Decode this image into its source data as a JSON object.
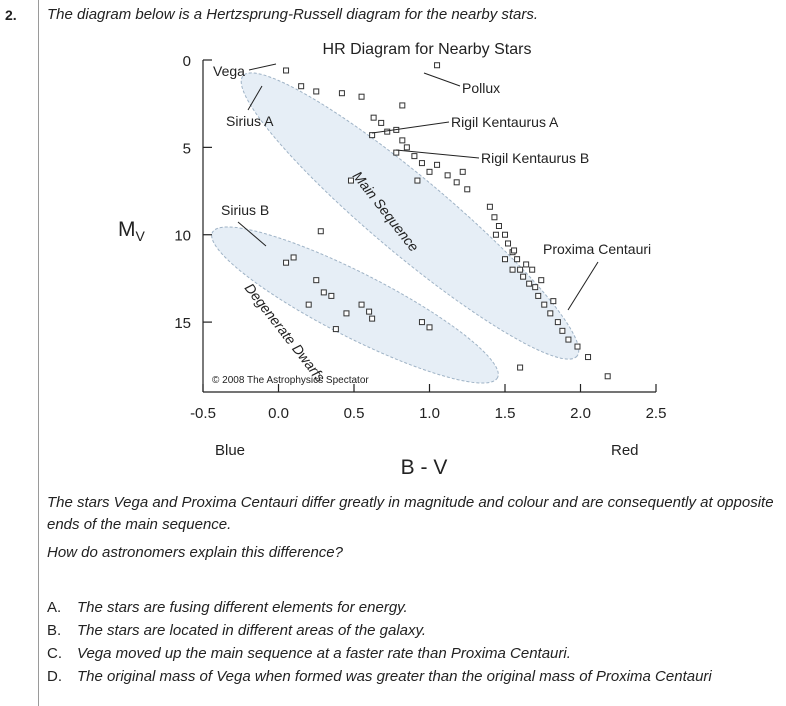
{
  "question": {
    "number": "2.",
    "intro": "The diagram below is a Hertzsprung-Russell diagram for the nearby stars.",
    "statement": "The stars Vega and Proxima Centauri differ greatly in magnitude and colour and are consequently at opposite ends of the main sequence.",
    "prompt": "How do astronomers explain this difference?",
    "options": [
      {
        "letter": "A.",
        "text": "The stars are fusing different elements for energy."
      },
      {
        "letter": "B.",
        "text": "The stars are located in different areas of the galaxy."
      },
      {
        "letter": "C.",
        "text": "Vega moved up the main sequence at a faster rate than Proxima Centauri."
      },
      {
        "letter": "D.",
        "text": "The original mass of Vega when formed was greater than the original mass of Proxima Centauri"
      }
    ]
  },
  "chart_data": {
    "type": "scatter",
    "title": "HR Diagram for Nearby Stars",
    "xlabel": "B - V",
    "ylabel": "Mv",
    "x_ticks": [
      "-0.5",
      "0.0",
      "0.5",
      "1.0",
      "1.5",
      "2.0",
      "2.5"
    ],
    "y_ticks": [
      "0",
      "5",
      "10",
      "15"
    ],
    "xlim": [
      -0.5,
      2.5
    ],
    "ylim": [
      0,
      19
    ],
    "y_inverted": true,
    "x_end_labels": {
      "left": "Blue",
      "right": "Red"
    },
    "regions": [
      {
        "label": "Main Sequence"
      },
      {
        "label": "Degenerate Dwarfs"
      }
    ],
    "annotations": [
      {
        "label": "Vega",
        "x": 0.05,
        "y": 0.8
      },
      {
        "label": "Pollux",
        "x": 1.0,
        "y": 2.0
      },
      {
        "label": "Sirius A",
        "x": 0.0,
        "y": 1.4
      },
      {
        "label": "Rigil Kentaurus A",
        "x": 0.7,
        "y": 4.4
      },
      {
        "label": "Rigil Kentaurus B",
        "x": 0.9,
        "y": 5.8
      },
      {
        "label": "Sirius B",
        "x": -0.05,
        "y": 11.4
      },
      {
        "label": "Proxima Centauri",
        "x": 1.9,
        "y": 15.4
      }
    ],
    "copyright": "© 2008 The Astrophysics Spectator",
    "points": [
      {
        "x": 0.05,
        "y": 0.6
      },
      {
        "x": 0.15,
        "y": 1.5
      },
      {
        "x": 0.25,
        "y": 1.8
      },
      {
        "x": 0.42,
        "y": 1.9
      },
      {
        "x": 0.55,
        "y": 2.1
      },
      {
        "x": 0.82,
        "y": 2.6
      },
      {
        "x": 1.05,
        "y": 0.3
      },
      {
        "x": 0.63,
        "y": 3.3
      },
      {
        "x": 0.68,
        "y": 3.6
      },
      {
        "x": 0.72,
        "y": 4.1
      },
      {
        "x": 0.78,
        "y": 4.0
      },
      {
        "x": 0.62,
        "y": 4.3
      },
      {
        "x": 0.82,
        "y": 4.6
      },
      {
        "x": 0.85,
        "y": 5.0
      },
      {
        "x": 0.78,
        "y": 5.3
      },
      {
        "x": 0.9,
        "y": 5.5
      },
      {
        "x": 0.95,
        "y": 5.9
      },
      {
        "x": 1.0,
        "y": 6.4
      },
      {
        "x": 1.05,
        "y": 6.0
      },
      {
        "x": 1.12,
        "y": 6.6
      },
      {
        "x": 1.18,
        "y": 7.0
      },
      {
        "x": 1.22,
        "y": 6.4
      },
      {
        "x": 1.25,
        "y": 7.4
      },
      {
        "x": 0.92,
        "y": 6.9
      },
      {
        "x": 0.48,
        "y": 6.9
      },
      {
        "x": 1.4,
        "y": 8.4
      },
      {
        "x": 1.43,
        "y": 9.0
      },
      {
        "x": 1.46,
        "y": 9.5
      },
      {
        "x": 1.5,
        "y": 10.0
      },
      {
        "x": 1.52,
        "y": 10.5
      },
      {
        "x": 1.55,
        "y": 11.0
      },
      {
        "x": 1.58,
        "y": 11.4
      },
      {
        "x": 1.6,
        "y": 12.0
      },
      {
        "x": 1.62,
        "y": 12.4
      },
      {
        "x": 1.66,
        "y": 12.8
      },
      {
        "x": 1.7,
        "y": 13.0
      },
      {
        "x": 1.72,
        "y": 13.5
      },
      {
        "x": 1.76,
        "y": 14.0
      },
      {
        "x": 1.8,
        "y": 14.5
      },
      {
        "x": 1.85,
        "y": 15.0
      },
      {
        "x": 1.88,
        "y": 15.5
      },
      {
        "x": 1.92,
        "y": 16.0
      },
      {
        "x": 1.98,
        "y": 16.4
      },
      {
        "x": 2.05,
        "y": 17.0
      },
      {
        "x": 1.56,
        "y": 10.9
      },
      {
        "x": 1.64,
        "y": 11.7
      },
      {
        "x": 1.5,
        "y": 11.4
      },
      {
        "x": 1.68,
        "y": 12.0
      },
      {
        "x": 1.74,
        "y": 12.6
      },
      {
        "x": 1.82,
        "y": 13.8
      },
      {
        "x": 1.44,
        "y": 10.0
      },
      {
        "x": 2.18,
        "y": 18.1
      },
      {
        "x": 1.6,
        "y": 17.6
      },
      {
        "x": 1.55,
        "y": 12.0
      },
      {
        "x": 0.05,
        "y": 11.6
      },
      {
        "x": 0.1,
        "y": 11.3
      },
      {
        "x": 0.25,
        "y": 12.6
      },
      {
        "x": 0.3,
        "y": 13.3
      },
      {
        "x": 0.35,
        "y": 13.5
      },
      {
        "x": 0.2,
        "y": 14.0
      },
      {
        "x": 0.55,
        "y": 14.0
      },
      {
        "x": 0.6,
        "y": 14.4
      },
      {
        "x": 0.62,
        "y": 14.8
      },
      {
        "x": 0.45,
        "y": 14.5
      },
      {
        "x": 0.95,
        "y": 15.0
      },
      {
        "x": 1.0,
        "y": 15.3
      },
      {
        "x": 0.38,
        "y": 15.4
      },
      {
        "x": 0.28,
        "y": 9.8
      }
    ]
  }
}
